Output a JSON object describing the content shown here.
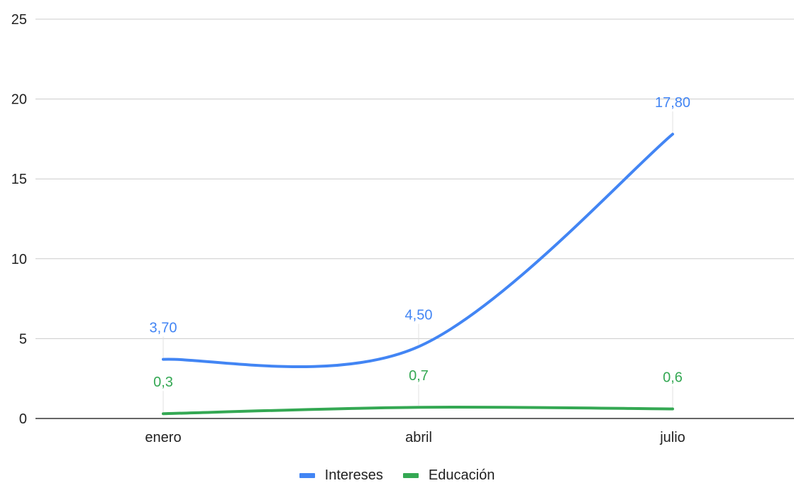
{
  "chart_data": {
    "type": "line",
    "categories": [
      "enero",
      "abril",
      "julio"
    ],
    "series": [
      {
        "name": "Intereses",
        "values": [
          3.7,
          4.5,
          17.8
        ],
        "labels": [
          "3,70",
          "4,50",
          "17,80"
        ],
        "color": "#4285F4"
      },
      {
        "name": "Educación",
        "values": [
          0.3,
          0.7,
          0.6
        ],
        "labels": [
          "0,3",
          "0,7",
          "0,6"
        ],
        "color": "#34A853"
      }
    ],
    "ylim": [
      0,
      25
    ],
    "yticks": [
      0,
      5,
      10,
      15,
      20,
      25
    ],
    "grid": true,
    "legend_position": "bottom",
    "title": "",
    "xlabel": "",
    "ylabel": ""
  }
}
